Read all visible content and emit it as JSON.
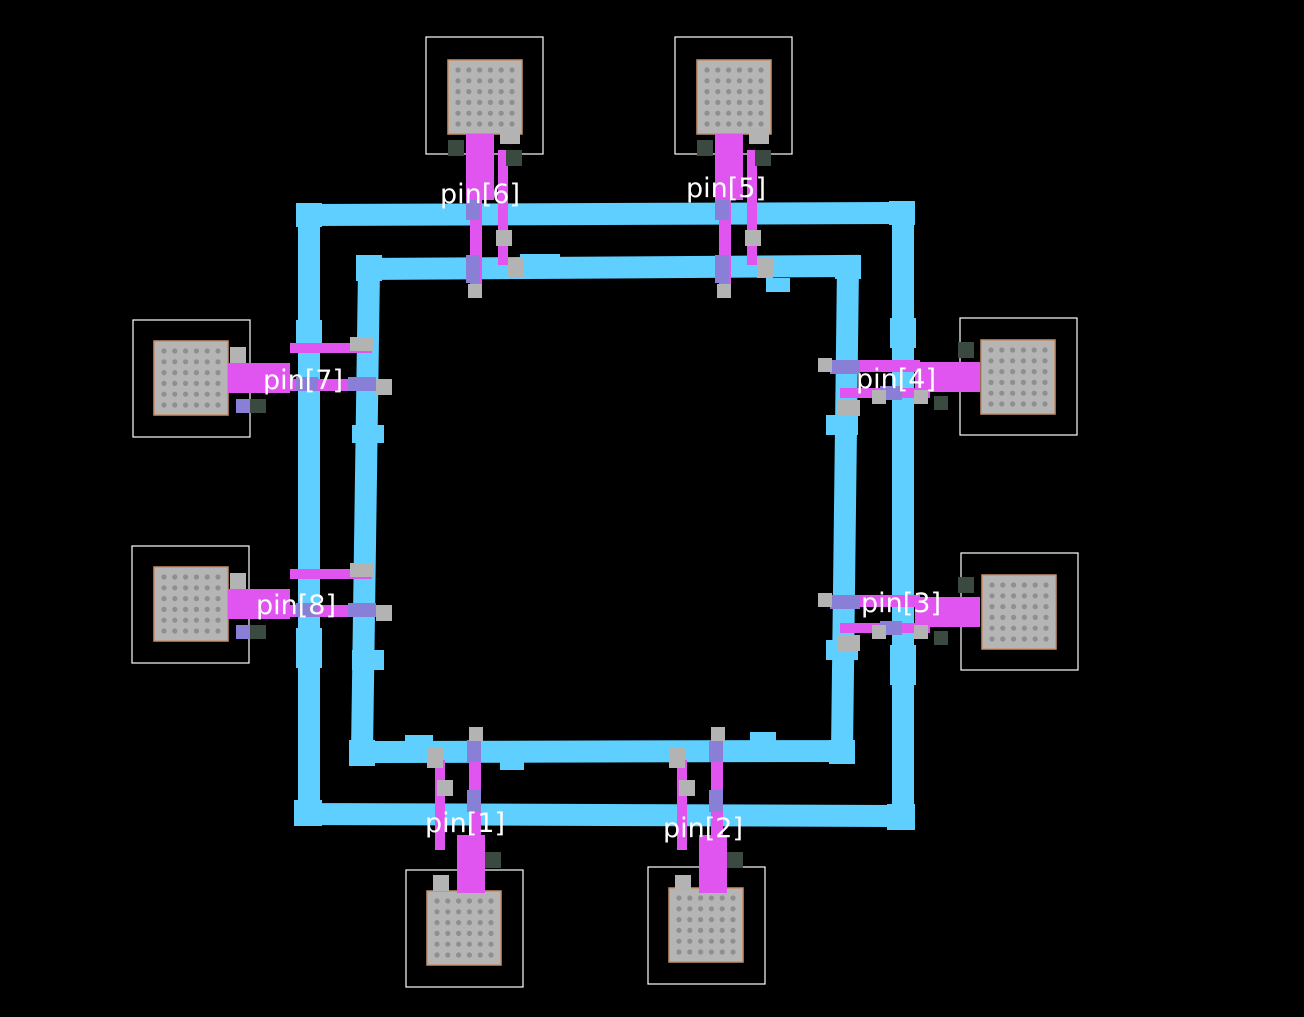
{
  "layout_view": {
    "colors": {
      "background": "#000000",
      "ring_metal": "#5ecfff",
      "via_metal": "#e055ef",
      "via_layer": "#8a7fd6",
      "contact": "#b3b3b3",
      "dark_contact": "#3a4a40",
      "pad_fill": "#b5b5b5",
      "pad_border": "#c8906a",
      "pad_dot": "#8f8f8f",
      "outline": "#ffffff",
      "label": "#ffffff"
    },
    "pins": [
      {
        "id": "pin1",
        "label": "pin[1]",
        "side": "bottom"
      },
      {
        "id": "pin2",
        "label": "pin[2]",
        "side": "bottom"
      },
      {
        "id": "pin3",
        "label": "pin[3]",
        "side": "right"
      },
      {
        "id": "pin4",
        "label": "pin[4]",
        "side": "right"
      },
      {
        "id": "pin5",
        "label": "pin[5]",
        "side": "top"
      },
      {
        "id": "pin6",
        "label": "pin[6]",
        "side": "top"
      },
      {
        "id": "pin7",
        "label": "pin[7]",
        "side": "left"
      },
      {
        "id": "pin8",
        "label": "pin[8]",
        "side": "left"
      }
    ]
  }
}
